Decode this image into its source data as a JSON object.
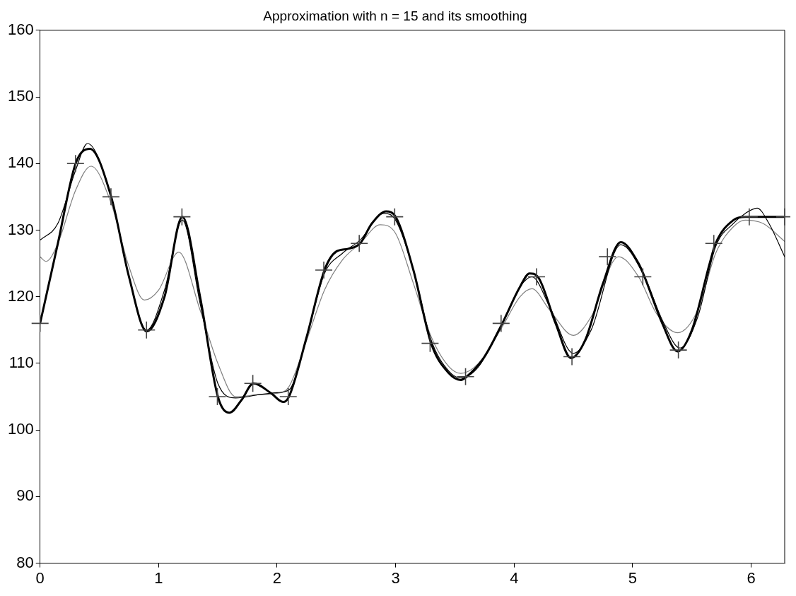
{
  "chart_data": {
    "type": "line",
    "title": "Approximation with n = 15 and its smoothing",
    "xlim": [
      0,
      6.283
    ],
    "xticks": [
      0,
      1,
      2,
      3,
      4,
      5,
      6
    ],
    "ylim": [
      80,
      160
    ],
    "yticks": [
      80,
      90,
      100,
      110,
      120,
      130,
      140,
      150,
      160
    ],
    "grid": false,
    "legend": false,
    "series": [
      {
        "color": "#000000",
        "marker": "none",
        "line_style": "solid",
        "x": [
          0,
          0.15,
          0.3,
          0.42,
          0.6,
          0.75,
          0.9,
          1.05,
          1.2,
          1.35,
          1.5,
          1.6,
          1.7,
          1.8,
          1.95,
          2.05,
          2.1,
          2.25,
          2.4,
          2.5,
          2.6,
          2.7,
          2.8,
          2.92,
          3.0,
          3.15,
          3.3,
          3.45,
          3.55,
          3.6,
          3.75,
          3.9,
          4.05,
          4.13,
          4.2,
          4.35,
          4.48,
          4.6,
          4.75,
          4.9,
          5.05,
          5.1,
          5.25,
          5.38,
          5.5,
          5.65,
          5.7,
          5.85,
          5.95,
          6.1,
          6.283
        ],
        "values": [
          116,
          128,
          140,
          142.2,
          135,
          123,
          114.8,
          120,
          132,
          120,
          105,
          102.6,
          104.5,
          107,
          105.5,
          104.2,
          105,
          114,
          124,
          126.8,
          127.2,
          128,
          131,
          132.8,
          132,
          124,
          113,
          108.5,
          107.5,
          108,
          111,
          116,
          121.5,
          123.5,
          123,
          116,
          110.8,
          113.5,
          122,
          128.2,
          125,
          123,
          116,
          111.8,
          115,
          125,
          128,
          131.5,
          132,
          132,
          132
        ]
      },
      {
        "color": "#000000",
        "marker": "none",
        "line_style": "solid",
        "x": [
          0,
          0.15,
          0.3,
          0.4,
          0.6,
          0.75,
          0.9,
          1.05,
          1.2,
          1.35,
          1.5,
          1.65,
          1.85,
          2.0,
          2.1,
          2.25,
          2.4,
          2.55,
          2.7,
          2.9,
          3.0,
          3.15,
          3.3,
          3.45,
          3.55,
          3.7,
          3.9,
          4.05,
          4.15,
          4.3,
          4.5,
          4.65,
          4.9,
          5.1,
          5.25,
          5.4,
          5.55,
          5.7,
          5.85,
          5.95,
          6.05,
          6.15,
          6.283
        ],
        "values": [
          128.5,
          131,
          139,
          143,
          135,
          123,
          115,
          121,
          131.5,
          119,
          107,
          104.8,
          105.3,
          105.6,
          106,
          114,
          123.5,
          126.5,
          128.5,
          132.5,
          131.5,
          124,
          113.5,
          108.8,
          107.8,
          109.5,
          116,
          121.5,
          123,
          118.5,
          111.5,
          115,
          127.8,
          123,
          116.5,
          112.3,
          117,
          127.5,
          131,
          132.5,
          133.3,
          131,
          126
        ]
      },
      {
        "color": "#808080",
        "marker": "none",
        "line_style": "solid",
        "x": [
          0,
          0.05,
          0.15,
          0.3,
          0.43,
          0.6,
          0.75,
          0.88,
          1.0,
          1.17,
          1.35,
          1.5,
          1.65,
          1.85,
          2.0,
          2.1,
          2.25,
          2.4,
          2.55,
          2.7,
          2.87,
          3.0,
          3.15,
          3.3,
          3.45,
          3.55,
          3.7,
          3.9,
          4.05,
          4.15,
          4.3,
          4.5,
          4.65,
          4.88,
          5.05,
          5.2,
          5.38,
          5.55,
          5.7,
          5.85,
          5.95,
          6.1,
          6.283
        ],
        "values": [
          126,
          125.3,
          128,
          136,
          139.6,
          134,
          124.5,
          119.5,
          121,
          126.7,
          118,
          110,
          105,
          105.3,
          105.5,
          106.5,
          113.5,
          121,
          125.5,
          128,
          130.8,
          129.5,
          122,
          114,
          109.5,
          108.5,
          110,
          115.5,
          120,
          121.2,
          118,
          114.2,
          117,
          126,
          123,
          117.5,
          114.6,
          118,
          126.5,
          130.5,
          131.5,
          131,
          128.3
        ]
      },
      {
        "type": "scatter",
        "color": "#444444",
        "marker": "cross",
        "x": [
          0,
          0.299,
          0.598,
          0.898,
          1.197,
          1.496,
          1.795,
          2.094,
          2.394,
          2.693,
          2.992,
          3.291,
          3.59,
          3.89,
          4.189,
          4.488,
          4.787,
          5.086,
          5.386,
          5.685,
          5.984,
          6.283
        ],
        "values": [
          116,
          140,
          135,
          115,
          132,
          105,
          107,
          105,
          124,
          128,
          132,
          113,
          108,
          116,
          123,
          111,
          126,
          123,
          112,
          128,
          132,
          132
        ]
      }
    ]
  }
}
